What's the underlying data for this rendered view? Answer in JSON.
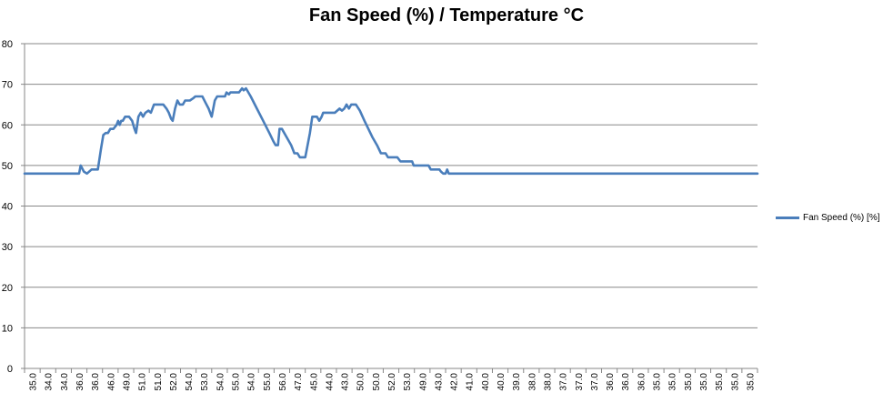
{
  "chart_data": {
    "type": "line",
    "title": "Fan Speed (%) / Temperature °C",
    "xlabel": "",
    "ylabel": "",
    "ylim": [
      0,
      80
    ],
    "yticks": [
      0,
      10,
      20,
      30,
      40,
      50,
      60,
      70,
      80
    ],
    "grid": true,
    "legend_position": "right",
    "x_tick_labels": [
      "35.0",
      "34.0",
      "34.0",
      "36.0",
      "36.0",
      "46.0",
      "49.0",
      "51.0",
      "51.0",
      "52.0",
      "54.0",
      "53.0",
      "54.0",
      "55.0",
      "54.0",
      "55.0",
      "56.0",
      "47.0",
      "45.0",
      "44.0",
      "43.0",
      "50.0",
      "50.0",
      "52.0",
      "53.0",
      "49.0",
      "43.0",
      "42.0",
      "41.0",
      "40.0",
      "40.0",
      "39.0",
      "38.0",
      "38.0",
      "37.0",
      "37.0",
      "37.0",
      "36.0",
      "36.0",
      "36.0",
      "35.0",
      "35.0",
      "35.0",
      "35.0",
      "35.0",
      "35.0",
      "35.0"
    ],
    "series": [
      {
        "name": "Fan Speed (%)  [%]",
        "color": "#4a7ebb",
        "points": [
          [
            0,
            48
          ],
          [
            3.5,
            48
          ],
          [
            3.6,
            50
          ],
          [
            3.8,
            48.5
          ],
          [
            4.0,
            48
          ],
          [
            4.3,
            49
          ],
          [
            4.7,
            49
          ],
          [
            4.9,
            54
          ],
          [
            5.05,
            57.5
          ],
          [
            5.2,
            58
          ],
          [
            5.35,
            58
          ],
          [
            5.5,
            59
          ],
          [
            5.7,
            59
          ],
          [
            5.9,
            60
          ],
          [
            6.0,
            61
          ],
          [
            6.1,
            60
          ],
          [
            6.2,
            61
          ],
          [
            6.3,
            61
          ],
          [
            6.45,
            62
          ],
          [
            6.7,
            62
          ],
          [
            6.9,
            61
          ],
          [
            7.05,
            59
          ],
          [
            7.15,
            58
          ],
          [
            7.3,
            62
          ],
          [
            7.45,
            63
          ],
          [
            7.6,
            62
          ],
          [
            7.75,
            63
          ],
          [
            7.95,
            63.5
          ],
          [
            8.1,
            63
          ],
          [
            8.3,
            65
          ],
          [
            8.6,
            65
          ],
          [
            8.9,
            65
          ],
          [
            9.1,
            64
          ],
          [
            9.25,
            63
          ],
          [
            9.4,
            61.5
          ],
          [
            9.5,
            61
          ],
          [
            9.65,
            64
          ],
          [
            9.8,
            66
          ],
          [
            9.95,
            65
          ],
          [
            10.15,
            65
          ],
          [
            10.3,
            66
          ],
          [
            10.6,
            66
          ],
          [
            10.8,
            66.5
          ],
          [
            10.95,
            67
          ],
          [
            11.4,
            67
          ],
          [
            11.6,
            65.5
          ],
          [
            11.8,
            64
          ],
          [
            12.0,
            62
          ],
          [
            12.2,
            66
          ],
          [
            12.35,
            67
          ],
          [
            12.6,
            67
          ],
          [
            12.85,
            67
          ],
          [
            12.95,
            68
          ],
          [
            13.1,
            67.5
          ],
          [
            13.2,
            68
          ],
          [
            13.5,
            68
          ],
          [
            13.75,
            68
          ],
          [
            13.95,
            69
          ],
          [
            14.05,
            68.5
          ],
          [
            14.2,
            69
          ],
          [
            14.5,
            67
          ],
          [
            14.9,
            64
          ],
          [
            15.3,
            61
          ],
          [
            15.7,
            58
          ],
          [
            15.95,
            56
          ],
          [
            16.1,
            55
          ],
          [
            16.25,
            55
          ],
          [
            16.35,
            59
          ],
          [
            16.5,
            59
          ],
          [
            16.8,
            57
          ],
          [
            17.1,
            55
          ],
          [
            17.3,
            53
          ],
          [
            17.5,
            53
          ],
          [
            17.65,
            52
          ],
          [
            18.0,
            52
          ],
          [
            18.2,
            56
          ],
          [
            18.3,
            58
          ],
          [
            18.45,
            62
          ],
          [
            18.75,
            62
          ],
          [
            18.9,
            61
          ],
          [
            19.05,
            62
          ],
          [
            19.15,
            63
          ],
          [
            19.4,
            63
          ],
          [
            19.6,
            63
          ],
          [
            19.9,
            63
          ],
          [
            20.2,
            64
          ],
          [
            20.35,
            63.5
          ],
          [
            20.5,
            64
          ],
          [
            20.65,
            65
          ],
          [
            20.8,
            64
          ],
          [
            20.95,
            65
          ],
          [
            21.25,
            65
          ],
          [
            21.5,
            63.5
          ],
          [
            21.8,
            61
          ],
          [
            22.05,
            59
          ],
          [
            22.3,
            57
          ],
          [
            22.6,
            55
          ],
          [
            22.85,
            53
          ],
          [
            23.15,
            53
          ],
          [
            23.3,
            52
          ],
          [
            23.9,
            52
          ],
          [
            24.1,
            51
          ],
          [
            24.5,
            51
          ],
          [
            24.85,
            51
          ],
          [
            24.95,
            50
          ],
          [
            25.5,
            50
          ],
          [
            25.9,
            50
          ],
          [
            26.05,
            49
          ],
          [
            26.4,
            49
          ],
          [
            26.6,
            49
          ],
          [
            26.7,
            48.5
          ],
          [
            26.85,
            48
          ],
          [
            27.0,
            48
          ],
          [
            27.1,
            49
          ],
          [
            27.2,
            48
          ],
          [
            47,
            48
          ]
        ]
      }
    ]
  }
}
